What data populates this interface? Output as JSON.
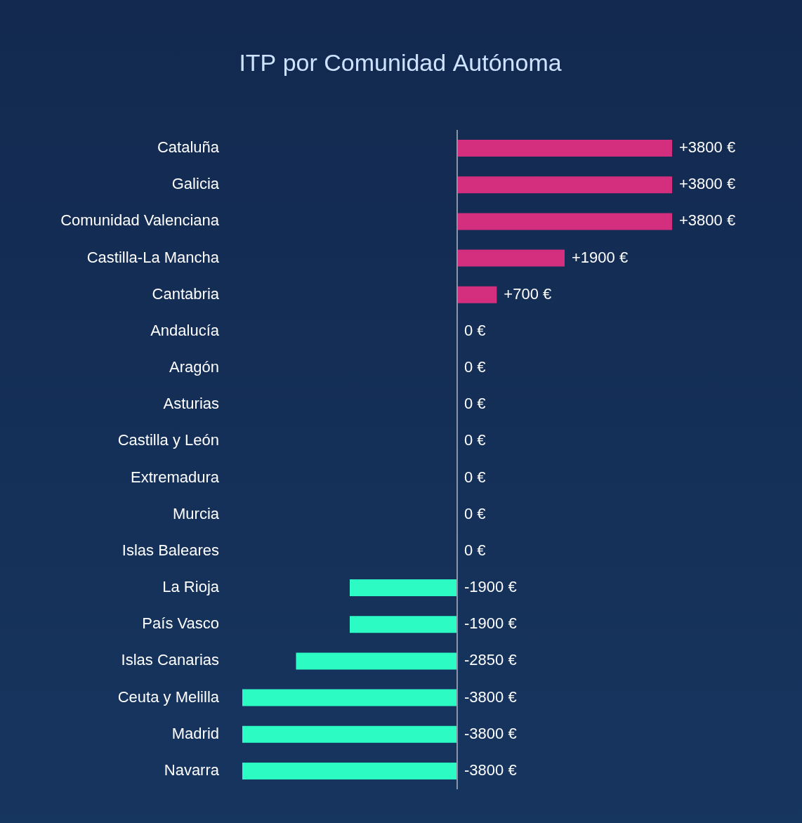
{
  "chart_data": {
    "type": "bar",
    "orientation": "horizontal",
    "title": "ITP por Comunidad Autónoma",
    "categories": [
      "Cataluña",
      "Galicia",
      "Comunidad Valenciana",
      "Castilla-La Mancha",
      "Cantabria",
      "Andalucía",
      "Aragón",
      "Asturias",
      "Castilla y León",
      "Extremadura",
      "Murcia",
      "Islas Baleares",
      "La Rioja",
      "País Vasco",
      "Islas Canarias",
      "Ceuta y Melilla",
      "Madrid",
      "Navarra"
    ],
    "values": [
      3800,
      3800,
      3800,
      1900,
      700,
      0,
      0,
      0,
      0,
      0,
      0,
      0,
      -1900,
      -1900,
      -2850,
      -3800,
      -3800,
      -3800
    ],
    "value_labels": [
      "+3800 €",
      "+3800 €",
      "+3800 €",
      "+1900 €",
      "+700 €",
      "0 €",
      "0 €",
      "0 €",
      "0 €",
      "0 €",
      "0 €",
      "0 €",
      "-1900 €",
      "-1900 €",
      "-2850 €",
      "-3800 €",
      "-3800 €",
      "-3800 €"
    ],
    "colors": [
      "#d42f7e",
      "#d42f7e",
      "#d42f7e",
      "#d42f7e",
      "#d42f7e",
      "#d42f7e",
      "#d42f7e",
      "#d42f7e",
      "#d42f7e",
      "#d42f7e",
      "#d42f7e",
      "#d42f7e",
      "#2cfcc4",
      "#2cfcc4",
      "#2cfcc4",
      "#2cfcc4",
      "#2cfcc4",
      "#2cfcc4"
    ],
    "xlim": [
      -3800,
      3800
    ],
    "xticks": [
      -3800,
      0,
      3800
    ],
    "grid": false,
    "data_labels": true,
    "tick_labels": "y"
  }
}
